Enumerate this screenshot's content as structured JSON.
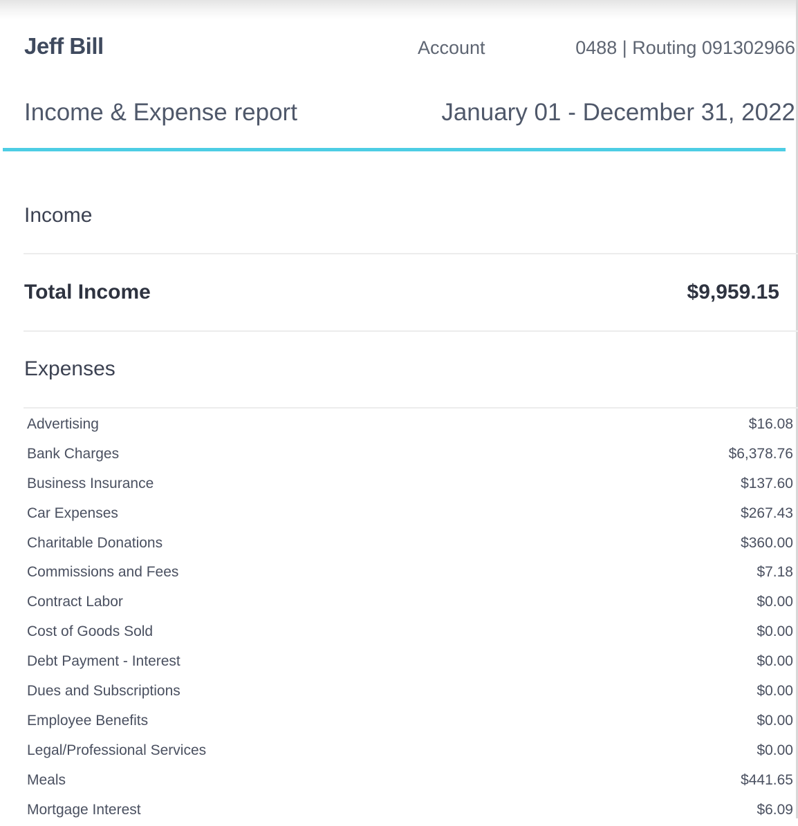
{
  "header": {
    "name": "Jeff Bill",
    "account_label": "Account",
    "account_number": "0488 | Routing 091302966"
  },
  "report": {
    "title": "Income & Expense report",
    "period": "January 01 - December 31, 2022"
  },
  "income": {
    "heading": "Income",
    "total_label": "Total Income",
    "total_value": "$9,959.15"
  },
  "expenses": {
    "heading": "Expenses",
    "items": [
      {
        "name": "Advertising",
        "amount": "$16.08"
      },
      {
        "name": "Bank Charges",
        "amount": "$6,378.76"
      },
      {
        "name": "Business Insurance",
        "amount": "$137.60"
      },
      {
        "name": "Car Expenses",
        "amount": "$267.43"
      },
      {
        "name": "Charitable Donations",
        "amount": "$360.00"
      },
      {
        "name": "Commissions and Fees",
        "amount": "$7.18"
      },
      {
        "name": "Contract Labor",
        "amount": "$0.00"
      },
      {
        "name": "Cost of Goods Sold",
        "amount": "$0.00"
      },
      {
        "name": "Debt Payment - Interest",
        "amount": "$0.00"
      },
      {
        "name": "Dues and Subscriptions",
        "amount": "$0.00"
      },
      {
        "name": "Employee Benefits",
        "amount": "$0.00"
      },
      {
        "name": "Legal/Professional Services",
        "amount": "$0.00"
      },
      {
        "name": "Meals",
        "amount": "$441.65"
      },
      {
        "name": "Mortgage Interest",
        "amount": "$6.09"
      }
    ]
  },
  "colors": {
    "accent": "#4dcde4",
    "heading_text": "#3f4a5e",
    "body_text": "#4a5060"
  }
}
